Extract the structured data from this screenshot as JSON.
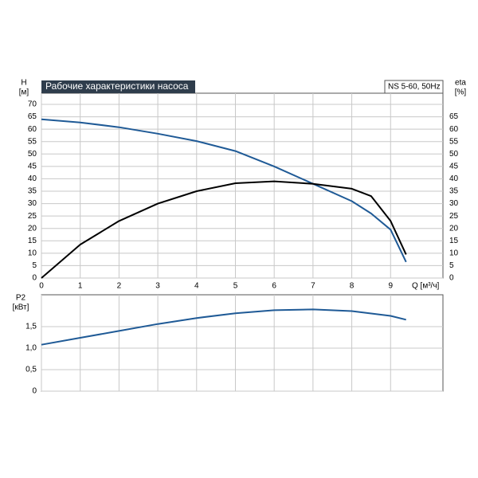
{
  "chart_data": [
    {
      "type": "line",
      "title": "Рабочие характеристики насоса",
      "annotation": "NS 5-60, 50Hz",
      "y_label": "H",
      "y_unit": "[м]",
      "y2_label": "eta",
      "y2_unit": "[%]",
      "x_label": "Q [м³/ч]",
      "x": [
        0,
        1,
        2,
        3,
        4,
        5,
        6,
        7,
        8,
        8.5,
        9,
        9.4
      ],
      "series": [
        {
          "color": "#1f5a96",
          "axis": "y",
          "values": [
            64,
            62.7,
            60.8,
            58.2,
            55.2,
            51.2,
            45,
            38,
            31,
            26,
            19.5,
            6.5
          ]
        },
        {
          "color": "#000000",
          "axis": "y2",
          "values": [
            0,
            13.5,
            23,
            30,
            35,
            38.2,
            39,
            38,
            36,
            33,
            23,
            9.5
          ]
        }
      ],
      "xlim": [
        0,
        10.35
      ],
      "xticks": [
        0,
        1,
        2,
        3,
        4,
        5,
        6,
        7,
        8,
        9
      ],
      "ylim": [
        0,
        74.5
      ],
      "yticks": [
        0,
        5,
        10,
        15,
        20,
        25,
        30,
        35,
        40,
        45,
        50,
        55,
        60,
        65,
        70
      ],
      "y2lim": [
        0,
        74.5
      ],
      "y2ticks": [
        0,
        5,
        10,
        15,
        20,
        25,
        30,
        35,
        40,
        45,
        50,
        55,
        60,
        65
      ],
      "grid": true
    },
    {
      "type": "line",
      "y_label": "P2",
      "y_unit": "[кВт]",
      "x": [
        0,
        1,
        2,
        3,
        4,
        5,
        6,
        7,
        8,
        9,
        9.4
      ],
      "series": [
        {
          "color": "#1f5a96",
          "values": [
            1.08,
            1.24,
            1.4,
            1.56,
            1.7,
            1.81,
            1.88,
            1.9,
            1.86,
            1.75,
            1.66
          ]
        }
      ],
      "xlim": [
        0,
        10.35
      ],
      "ylim": [
        0,
        2.24
      ],
      "yticks": [
        0,
        {
          "value": 0.5,
          "label": "0,5"
        },
        {
          "value": 1,
          "label": "1,0"
        },
        {
          "value": 1.5,
          "label": "1,5"
        }
      ],
      "grid": true
    }
  ]
}
